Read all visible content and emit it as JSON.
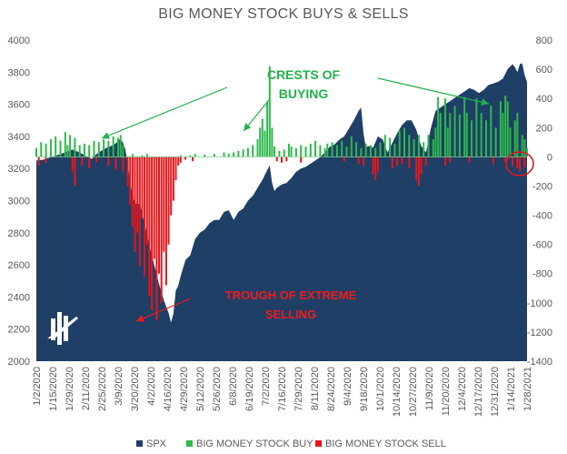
{
  "chart_data": {
    "type": "area",
    "title": "BIG MONEY STOCK BUYS & SELLS",
    "x_tick_labels": [
      "1/2/2020",
      "1/15/2020",
      "1/29/2020",
      "2/11/2020",
      "2/25/2020",
      "3/9/2020",
      "3/20/2020",
      "4/2/2020",
      "4/16/2020",
      "4/29/2020",
      "5/12/2020",
      "5/26/2020",
      "6/8/2020",
      "6/19/2020",
      "7/2/2020",
      "7/16/2020",
      "7/29/2020",
      "8/11/2020",
      "8/24/2020",
      "9/4/2020",
      "9/18/2020",
      "10/1/2020",
      "10/14/2020",
      "10/27/2020",
      "11/9/2020",
      "11/20/2020",
      "12/4/2020",
      "12/17/2020",
      "12/31/2020",
      "1/14/2021",
      "1/28/2021"
    ],
    "left_axis": {
      "min": 2000,
      "max": 4000,
      "ticks": [
        "4000",
        "3800",
        "3600",
        "3400",
        "3200",
        "3000",
        "2800",
        "2600",
        "2400",
        "2200",
        "2000"
      ]
    },
    "right_axis": {
      "min": -1400,
      "max": 800,
      "ticks": [
        "800",
        "600",
        "400",
        "200",
        "0",
        "-200",
        "-400",
        "-600",
        "-800",
        "-1000",
        "-1200",
        "-1400"
      ]
    },
    "series": [
      {
        "name": "SPX",
        "axis": "left",
        "color": "#1f3f66",
        "anchors": [
          [
            0,
            3250
          ],
          [
            3,
            3255
          ],
          [
            6,
            3270
          ],
          [
            9,
            3285
          ],
          [
            12,
            3300
          ],
          [
            15,
            3318
          ],
          [
            18,
            3300
          ],
          [
            21,
            3275
          ],
          [
            23,
            3260
          ],
          [
            25,
            3290
          ],
          [
            27,
            3310
          ],
          [
            30,
            3335
          ],
          [
            32,
            3345
          ],
          [
            34,
            3370
          ],
          [
            35,
            3385
          ],
          [
            36,
            3360
          ],
          [
            37,
            3320
          ],
          [
            38,
            3230
          ],
          [
            39,
            3120
          ],
          [
            40,
            3030
          ],
          [
            41,
            2980
          ],
          [
            43,
            2980
          ],
          [
            45,
            2860
          ],
          [
            47,
            2720
          ],
          [
            49,
            2600
          ],
          [
            51,
            2480
          ],
          [
            53,
            2380
          ],
          [
            55,
            2300
          ],
          [
            56,
            2240
          ],
          [
            57,
            2300
          ],
          [
            58,
            2440
          ],
          [
            59,
            2470
          ],
          [
            60,
            2530
          ],
          [
            62,
            2630
          ],
          [
            64,
            2660
          ],
          [
            66,
            2760
          ],
          [
            68,
            2800
          ],
          [
            70,
            2820
          ],
          [
            72,
            2860
          ],
          [
            74,
            2880
          ],
          [
            76,
            2880
          ],
          [
            78,
            2930
          ],
          [
            80,
            2940
          ],
          [
            82,
            2880
          ],
          [
            84,
            2930
          ],
          [
            86,
            2950
          ],
          [
            88,
            3000
          ],
          [
            90,
            3030
          ],
          [
            92,
            3080
          ],
          [
            94,
            3130
          ],
          [
            96,
            3190
          ],
          [
            97,
            3220
          ],
          [
            98,
            3110
          ],
          [
            99,
            3060
          ],
          [
            100,
            3080
          ],
          [
            102,
            3100
          ],
          [
            104,
            3110
          ],
          [
            106,
            3140
          ],
          [
            108,
            3180
          ],
          [
            110,
            3200
          ],
          [
            112,
            3210
          ],
          [
            114,
            3230
          ],
          [
            116,
            3250
          ],
          [
            118,
            3270
          ],
          [
            120,
            3300
          ],
          [
            122,
            3335
          ],
          [
            124,
            3350
          ],
          [
            126,
            3380
          ],
          [
            128,
            3400
          ],
          [
            130,
            3450
          ],
          [
            132,
            3500
          ],
          [
            134,
            3560
          ],
          [
            135,
            3580
          ],
          [
            136,
            3420
          ],
          [
            137,
            3330
          ],
          [
            138,
            3340
          ],
          [
            140,
            3330
          ],
          [
            142,
            3400
          ],
          [
            144,
            3380
          ],
          [
            146,
            3300
          ],
          [
            148,
            3360
          ],
          [
            150,
            3420
          ],
          [
            152,
            3470
          ],
          [
            154,
            3500
          ],
          [
            156,
            3500
          ],
          [
            158,
            3440
          ],
          [
            160,
            3340
          ],
          [
            162,
            3300
          ],
          [
            164,
            3450
          ],
          [
            166,
            3560
          ],
          [
            168,
            3580
          ],
          [
            170,
            3600
          ],
          [
            172,
            3620
          ],
          [
            174,
            3640
          ],
          [
            176,
            3660
          ],
          [
            178,
            3680
          ],
          [
            180,
            3700
          ],
          [
            182,
            3690
          ],
          [
            184,
            3670
          ],
          [
            186,
            3690
          ],
          [
            188,
            3720
          ],
          [
            190,
            3730
          ],
          [
            192,
            3740
          ],
          [
            194,
            3760
          ],
          [
            196,
            3820
          ],
          [
            198,
            3850
          ],
          [
            199,
            3830
          ],
          [
            200,
            3800
          ],
          [
            201,
            3850
          ],
          [
            202,
            3855
          ],
          [
            203,
            3780
          ],
          [
            204,
            3740
          ]
        ]
      },
      {
        "name": "BIG MONEY STOCK BUY",
        "axis": "right",
        "color": "#2db84b",
        "bars": [
          [
            0,
            60
          ],
          [
            2,
            100
          ],
          [
            4,
            90
          ],
          [
            6,
            120
          ],
          [
            8,
            140
          ],
          [
            10,
            110
          ],
          [
            12,
            170
          ],
          [
            13,
            80
          ],
          [
            14,
            150
          ],
          [
            16,
            130
          ],
          [
            18,
            80
          ],
          [
            20,
            90
          ],
          [
            22,
            80
          ],
          [
            24,
            110
          ],
          [
            26,
            100
          ],
          [
            28,
            120
          ],
          [
            30,
            110
          ],
          [
            32,
            140
          ],
          [
            34,
            130
          ],
          [
            35,
            150
          ],
          [
            36,
            80
          ],
          [
            40,
            20
          ],
          [
            44,
            10
          ],
          [
            46,
            20
          ],
          [
            60,
            10
          ],
          [
            64,
            10
          ],
          [
            66,
            20
          ],
          [
            70,
            15
          ],
          [
            74,
            20
          ],
          [
            78,
            30
          ],
          [
            80,
            20
          ],
          [
            82,
            30
          ],
          [
            84,
            40
          ],
          [
            86,
            50
          ],
          [
            88,
            60
          ],
          [
            90,
            80
          ],
          [
            92,
            120
          ],
          [
            93,
            200
          ],
          [
            94,
            260
          ],
          [
            95,
            180
          ],
          [
            96,
            380
          ],
          [
            97,
            620
          ],
          [
            98,
            200
          ],
          [
            99,
            70
          ],
          [
            101,
            40
          ],
          [
            103,
            50
          ],
          [
            105,
            90
          ],
          [
            106,
            70
          ],
          [
            108,
            60
          ],
          [
            110,
            80
          ],
          [
            112,
            70
          ],
          [
            114,
            90
          ],
          [
            116,
            110
          ],
          [
            118,
            80
          ],
          [
            120,
            60
          ],
          [
            121,
            90
          ],
          [
            123,
            100
          ],
          [
            125,
            80
          ],
          [
            127,
            110
          ],
          [
            129,
            70
          ],
          [
            131,
            140
          ],
          [
            133,
            100
          ],
          [
            135,
            60
          ],
          [
            137,
            90
          ],
          [
            139,
            80
          ],
          [
            141,
            60
          ],
          [
            143,
            100
          ],
          [
            145,
            150
          ],
          [
            147,
            130
          ],
          [
            149,
            90
          ],
          [
            151,
            180
          ],
          [
            153,
            200
          ],
          [
            155,
            150
          ],
          [
            157,
            120
          ],
          [
            159,
            150
          ],
          [
            161,
            100
          ],
          [
            163,
            150
          ],
          [
            165,
            120
          ],
          [
            166,
            200
          ],
          [
            167,
            410
          ],
          [
            168,
            300
          ],
          [
            170,
            400
          ],
          [
            171,
            200
          ],
          [
            172,
            300
          ],
          [
            174,
            350
          ],
          [
            176,
            290
          ],
          [
            178,
            410
          ],
          [
            179,
            300
          ],
          [
            181,
            250
          ],
          [
            183,
            400
          ],
          [
            185,
            300
          ],
          [
            187,
            250
          ],
          [
            189,
            350
          ],
          [
            191,
            200
          ],
          [
            193,
            380
          ],
          [
            194,
            300
          ],
          [
            195,
            420
          ],
          [
            196,
            380
          ],
          [
            197,
            200
          ],
          [
            199,
            250
          ],
          [
            200,
            300
          ],
          [
            202,
            150
          ],
          [
            203,
            120
          ],
          [
            204,
            60
          ]
        ]
      },
      {
        "name": "BIG MONEY STOCK SELL",
        "axis": "right",
        "color": "#e8151b",
        "bars": [
          [
            1,
            -60
          ],
          [
            4,
            -40
          ],
          [
            15,
            -100
          ],
          [
            16,
            -200
          ],
          [
            19,
            -60
          ],
          [
            22,
            -80
          ],
          [
            25,
            -40
          ],
          [
            30,
            -60
          ],
          [
            33,
            -90
          ],
          [
            36,
            -100
          ],
          [
            38,
            -200
          ],
          [
            39,
            -330
          ],
          [
            40,
            -480
          ],
          [
            41,
            -650
          ],
          [
            42,
            -520
          ],
          [
            43,
            -750
          ],
          [
            44,
            -420
          ],
          [
            45,
            -820
          ],
          [
            46,
            -600
          ],
          [
            47,
            -950
          ],
          [
            48,
            -1050
          ],
          [
            49,
            -700
          ],
          [
            50,
            -1120
          ],
          [
            51,
            -800
          ],
          [
            52,
            -1000
          ],
          [
            53,
            -650
          ],
          [
            54,
            -880
          ],
          [
            55,
            -600
          ],
          [
            56,
            -400
          ],
          [
            57,
            -300
          ],
          [
            58,
            -160
          ],
          [
            59,
            -60
          ],
          [
            60,
            -40
          ],
          [
            62,
            -20
          ],
          [
            65,
            -30
          ],
          [
            100,
            -30
          ],
          [
            102,
            -40
          ],
          [
            104,
            -30
          ],
          [
            110,
            -40
          ],
          [
            128,
            -30
          ],
          [
            134,
            -50
          ],
          [
            136,
            -60
          ],
          [
            140,
            -120
          ],
          [
            141,
            -160
          ],
          [
            142,
            -100
          ],
          [
            148,
            -80
          ],
          [
            150,
            -60
          ],
          [
            152,
            -50
          ],
          [
            155,
            -80
          ],
          [
            158,
            -160
          ],
          [
            159,
            -200
          ],
          [
            160,
            -120
          ],
          [
            162,
            -60
          ],
          [
            170,
            -60
          ],
          [
            172,
            -40
          ],
          [
            180,
            -40
          ],
          [
            190,
            -50
          ],
          [
            195,
            -40
          ],
          [
            198,
            -60
          ],
          [
            200,
            -80
          ],
          [
            201,
            -100
          ],
          [
            203,
            -70
          ]
        ]
      }
    ],
    "annotations": [
      {
        "text_lines": [
          "CRESTS OF",
          "BUYING"
        ],
        "color": "#22b14c"
      },
      {
        "text_lines": [
          "TROUGH OF EXTREME",
          "SELLING"
        ],
        "color": "#ee1c1c"
      }
    ],
    "legend": {
      "position": "bottom",
      "entries": [
        "SPX",
        "BIG MONEY STOCK BUY",
        "BIG MONEY STOCK SELL"
      ]
    },
    "grid": false,
    "x_points": 205
  }
}
